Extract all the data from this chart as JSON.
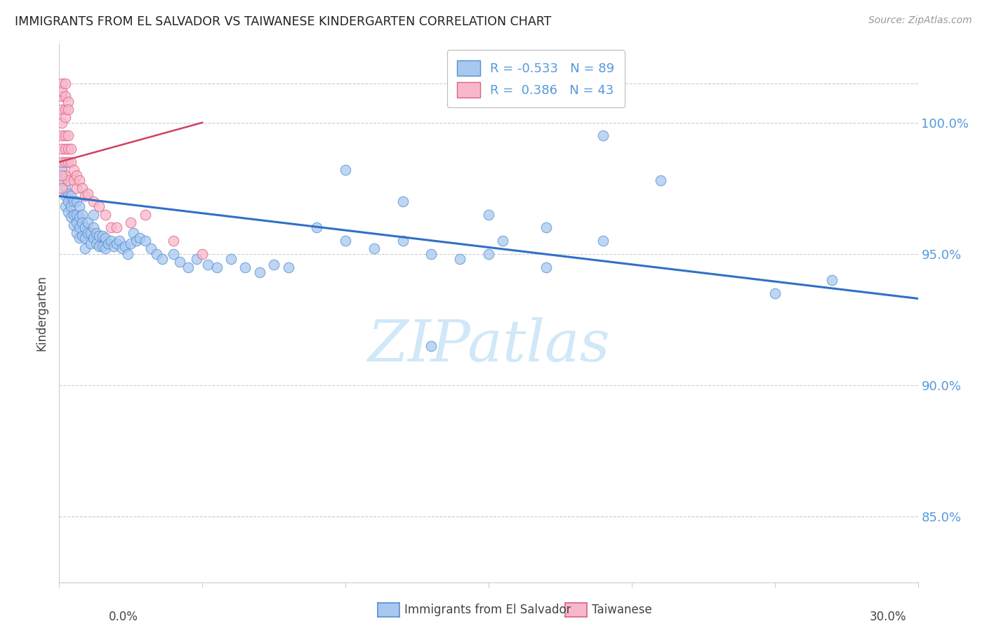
{
  "title": "IMMIGRANTS FROM EL SALVADOR VS TAIWANESE KINDERGARTEN CORRELATION CHART",
  "source": "Source: ZipAtlas.com",
  "ylabel": "Kindergarten",
  "legend_label1": "Immigrants from El Salvador",
  "legend_label2": "Taiwanese",
  "r1": -0.533,
  "n1": 89,
  "r2": 0.386,
  "n2": 43,
  "color_blue_fill": "#a8c8f0",
  "color_blue_edge": "#5590d0",
  "color_pink_fill": "#f8b8cc",
  "color_pink_edge": "#e06080",
  "color_blue_line": "#3070c8",
  "color_pink_line": "#d04060",
  "watermark_color": "#d0e8f8",
  "ytick_color": "#5599dd",
  "grid_color": "#cccccc",
  "spine_color": "#cccccc",
  "xlim": [
    0.0,
    0.3
  ],
  "ylim": [
    82.5,
    103.0
  ],
  "yticks": [
    85.0,
    90.0,
    95.0,
    100.0
  ],
  "blue_line_x": [
    0.0,
    0.3
  ],
  "blue_line_y": [
    97.2,
    93.3
  ],
  "pink_line_x": [
    0.0,
    0.05
  ],
  "pink_line_y": [
    98.5,
    100.0
  ],
  "blue_x": [
    0.001,
    0.001,
    0.002,
    0.002,
    0.002,
    0.003,
    0.003,
    0.003,
    0.004,
    0.004,
    0.004,
    0.005,
    0.005,
    0.005,
    0.006,
    0.006,
    0.006,
    0.006,
    0.007,
    0.007,
    0.007,
    0.007,
    0.008,
    0.008,
    0.008,
    0.009,
    0.009,
    0.009,
    0.01,
    0.01,
    0.011,
    0.011,
    0.012,
    0.012,
    0.012,
    0.013,
    0.013,
    0.014,
    0.014,
    0.015,
    0.015,
    0.016,
    0.016,
    0.017,
    0.018,
    0.019,
    0.02,
    0.021,
    0.022,
    0.023,
    0.024,
    0.025,
    0.026,
    0.027,
    0.028,
    0.03,
    0.032,
    0.034,
    0.036,
    0.04,
    0.042,
    0.045,
    0.048,
    0.052,
    0.055,
    0.06,
    0.065,
    0.07,
    0.075,
    0.08,
    0.09,
    0.1,
    0.11,
    0.12,
    0.13,
    0.14,
    0.15,
    0.17,
    0.19,
    0.21,
    0.1,
    0.12,
    0.15,
    0.17,
    0.19,
    0.155,
    0.25,
    0.27,
    0.13
  ],
  "blue_y": [
    98.2,
    97.8,
    97.5,
    97.2,
    96.8,
    97.3,
    97.0,
    96.6,
    97.2,
    96.8,
    96.4,
    97.0,
    96.5,
    96.1,
    97.0,
    96.5,
    96.2,
    95.8,
    96.8,
    96.4,
    96.0,
    95.6,
    96.5,
    96.2,
    95.7,
    96.0,
    95.6,
    95.2,
    96.2,
    95.8,
    95.8,
    95.4,
    96.5,
    96.0,
    95.6,
    95.8,
    95.4,
    95.7,
    95.3,
    95.7,
    95.3,
    95.6,
    95.2,
    95.4,
    95.5,
    95.3,
    95.4,
    95.5,
    95.2,
    95.3,
    95.0,
    95.4,
    95.8,
    95.5,
    95.6,
    95.5,
    95.2,
    95.0,
    94.8,
    95.0,
    94.7,
    94.5,
    94.8,
    94.6,
    94.5,
    94.8,
    94.5,
    94.3,
    94.6,
    94.5,
    96.0,
    95.5,
    95.2,
    95.5,
    95.0,
    94.8,
    95.0,
    94.5,
    99.5,
    97.8,
    98.2,
    97.0,
    96.5,
    96.0,
    95.5,
    95.5,
    93.5,
    94.0,
    91.5
  ],
  "pink_x": [
    0.001,
    0.001,
    0.001,
    0.001,
    0.001,
    0.001,
    0.001,
    0.002,
    0.002,
    0.002,
    0.002,
    0.002,
    0.003,
    0.003,
    0.003,
    0.003,
    0.004,
    0.004,
    0.005,
    0.005,
    0.006,
    0.006,
    0.007,
    0.008,
    0.009,
    0.01,
    0.012,
    0.014,
    0.016,
    0.018,
    0.02,
    0.025,
    0.03,
    0.04,
    0.05,
    0.001,
    0.001,
    0.002,
    0.002,
    0.003,
    0.001,
    0.002,
    0.003
  ],
  "pink_y": [
    101.0,
    100.5,
    100.0,
    99.5,
    99.0,
    98.5,
    97.5,
    100.5,
    99.5,
    99.0,
    98.5,
    98.0,
    99.5,
    99.0,
    98.5,
    97.8,
    99.0,
    98.5,
    98.2,
    97.8,
    98.0,
    97.5,
    97.8,
    97.5,
    97.2,
    97.3,
    97.0,
    96.8,
    96.5,
    96.0,
    96.0,
    96.2,
    96.5,
    95.5,
    95.0,
    101.5,
    101.2,
    101.5,
    101.0,
    100.8,
    98.0,
    100.2,
    100.5
  ]
}
